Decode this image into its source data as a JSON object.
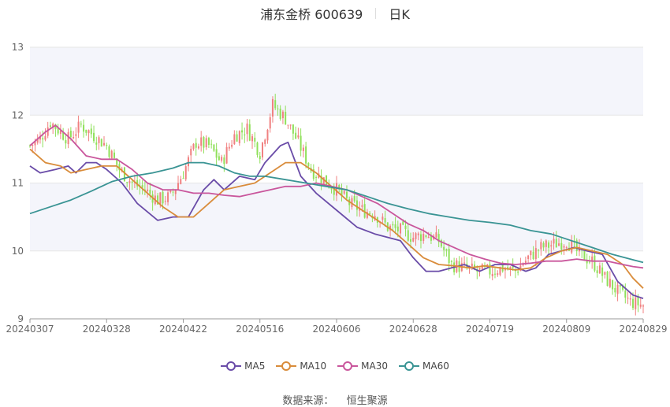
{
  "header": {
    "title": "浦东金桥 600639",
    "period": "日K"
  },
  "source": {
    "label": "数据来源：",
    "value": "恒生聚源"
  },
  "legend": [
    {
      "name": "MA5",
      "color": "#6a4ca8"
    },
    {
      "name": "MA10",
      "color": "#d98c3b"
    },
    {
      "name": "MA30",
      "color": "#c9569c"
    },
    {
      "name": "MA60",
      "color": "#3a9494"
    }
  ],
  "colors": {
    "up": "#f08080",
    "down": "#8fe05a",
    "grid": "#e6e6e6",
    "band": "#f4f5fb"
  },
  "chart_data": {
    "type": "candlestick",
    "title": "浦东金桥 600639",
    "ylim": [
      9,
      13
    ],
    "yticks": [
      "13",
      "12",
      "11",
      "10",
      "9"
    ],
    "xticks": [
      "20240307",
      "20240328",
      "20240422",
      "20240516",
      "20240606",
      "20240628",
      "20240719",
      "20240809",
      "20240829"
    ],
    "close_path": [
      [
        0,
        11.55
      ],
      [
        4,
        11.65
      ],
      [
        8,
        11.9
      ],
      [
        12,
        11.75
      ],
      [
        15,
        11.65
      ],
      [
        20,
        11.85
      ],
      [
        25,
        11.7
      ],
      [
        30,
        11.55
      ],
      [
        35,
        11.2
      ],
      [
        40,
        11.0
      ],
      [
        45,
        10.9
      ],
      [
        50,
        10.75
      ],
      [
        55,
        10.8
      ],
      [
        60,
        11.15
      ],
      [
        65,
        11.6
      ],
      [
        70,
        11.55
      ],
      [
        75,
        11.3
      ],
      [
        80,
        11.7
      ],
      [
        85,
        11.8
      ],
      [
        90,
        11.45
      ],
      [
        95,
        12.15
      ],
      [
        100,
        11.95
      ],
      [
        105,
        11.6
      ],
      [
        110,
        11.2
      ],
      [
        115,
        11.05
      ],
      [
        120,
        10.9
      ],
      [
        125,
        10.7
      ],
      [
        130,
        10.6
      ],
      [
        135,
        10.55
      ],
      [
        140,
        10.35
      ],
      [
        145,
        10.3
      ],
      [
        150,
        10.2
      ],
      [
        155,
        10.25
      ],
      [
        160,
        10.15
      ],
      [
        165,
        9.8
      ],
      [
        170,
        9.75
      ],
      [
        175,
        9.7
      ],
      [
        180,
        9.7
      ],
      [
        185,
        9.75
      ],
      [
        190,
        9.7
      ],
      [
        195,
        9.9
      ],
      [
        200,
        10.05
      ],
      [
        205,
        10.1
      ],
      [
        210,
        10.15
      ],
      [
        215,
        9.95
      ],
      [
        220,
        9.85
      ],
      [
        225,
        9.6
      ],
      [
        230,
        9.4
      ],
      [
        235,
        9.25
      ],
      [
        240,
        9.2
      ]
    ],
    "series": [
      {
        "name": "MA5",
        "values": [
          [
            0,
            11.25
          ],
          [
            4,
            11.15
          ],
          [
            10,
            11.2
          ],
          [
            15,
            11.25
          ],
          [
            18,
            11.15
          ],
          [
            22,
            11.3
          ],
          [
            26,
            11.3
          ],
          [
            30,
            11.2
          ],
          [
            36,
            11.0
          ],
          [
            42,
            10.7
          ],
          [
            50,
            10.45
          ],
          [
            56,
            10.5
          ],
          [
            62,
            10.5
          ],
          [
            68,
            10.9
          ],
          [
            72,
            11.05
          ],
          [
            76,
            10.9
          ],
          [
            82,
            11.1
          ],
          [
            88,
            11.05
          ],
          [
            92,
            11.3
          ],
          [
            98,
            11.55
          ],
          [
            101,
            11.6
          ],
          [
            106,
            11.1
          ],
          [
            112,
            10.85
          ],
          [
            120,
            10.6
          ],
          [
            128,
            10.35
          ],
          [
            135,
            10.25
          ],
          [
            140,
            10.2
          ],
          [
            145,
            10.15
          ],
          [
            150,
            9.9
          ],
          [
            155,
            9.7
          ],
          [
            160,
            9.7
          ],
          [
            165,
            9.75
          ],
          [
            170,
            9.8
          ],
          [
            176,
            9.7
          ],
          [
            182,
            9.8
          ],
          [
            188,
            9.8
          ],
          [
            194,
            9.7
          ],
          [
            198,
            9.75
          ],
          [
            203,
            9.95
          ],
          [
            208,
            10.0
          ],
          [
            213,
            10.05
          ],
          [
            218,
            10.0
          ],
          [
            224,
            9.95
          ],
          [
            230,
            9.55
          ],
          [
            236,
            9.35
          ],
          [
            240,
            9.3
          ]
        ]
      },
      {
        "name": "MA10",
        "values": [
          [
            0,
            11.5
          ],
          [
            6,
            11.3
          ],
          [
            12,
            11.25
          ],
          [
            16,
            11.15
          ],
          [
            22,
            11.2
          ],
          [
            28,
            11.25
          ],
          [
            34,
            11.25
          ],
          [
            40,
            11.05
          ],
          [
            46,
            10.85
          ],
          [
            52,
            10.65
          ],
          [
            58,
            10.5
          ],
          [
            64,
            10.5
          ],
          [
            70,
            10.7
          ],
          [
            76,
            10.9
          ],
          [
            82,
            10.95
          ],
          [
            88,
            11.0
          ],
          [
            94,
            11.15
          ],
          [
            100,
            11.3
          ],
          [
            106,
            11.3
          ],
          [
            112,
            11.15
          ],
          [
            118,
            10.95
          ],
          [
            124,
            10.75
          ],
          [
            130,
            10.6
          ],
          [
            136,
            10.45
          ],
          [
            142,
            10.3
          ],
          [
            148,
            10.1
          ],
          [
            154,
            9.9
          ],
          [
            160,
            9.8
          ],
          [
            166,
            9.78
          ],
          [
            172,
            9.75
          ],
          [
            178,
            9.78
          ],
          [
            184,
            9.75
          ],
          [
            190,
            9.72
          ],
          [
            196,
            9.75
          ],
          [
            202,
            9.9
          ],
          [
            208,
            10.0
          ],
          [
            214,
            10.05
          ],
          [
            220,
            10.0
          ],
          [
            226,
            9.95
          ],
          [
            232,
            9.8
          ],
          [
            236,
            9.6
          ],
          [
            240,
            9.45
          ]
        ]
      },
      {
        "name": "MA30",
        "values": [
          [
            0,
            11.55
          ],
          [
            6,
            11.75
          ],
          [
            10,
            11.85
          ],
          [
            16,
            11.65
          ],
          [
            22,
            11.4
          ],
          [
            28,
            11.35
          ],
          [
            34,
            11.35
          ],
          [
            40,
            11.2
          ],
          [
            46,
            11.0
          ],
          [
            52,
            10.9
          ],
          [
            58,
            10.9
          ],
          [
            64,
            10.85
          ],
          [
            70,
            10.85
          ],
          [
            76,
            10.82
          ],
          [
            82,
            10.8
          ],
          [
            88,
            10.85
          ],
          [
            94,
            10.9
          ],
          [
            100,
            10.95
          ],
          [
            106,
            10.95
          ],
          [
            112,
            11.0
          ],
          [
            118,
            10.95
          ],
          [
            124,
            10.9
          ],
          [
            130,
            10.8
          ],
          [
            136,
            10.7
          ],
          [
            142,
            10.55
          ],
          [
            148,
            10.4
          ],
          [
            154,
            10.3
          ],
          [
            160,
            10.15
          ],
          [
            166,
            10.05
          ],
          [
            172,
            9.95
          ],
          [
            178,
            9.88
          ],
          [
            184,
            9.82
          ],
          [
            190,
            9.8
          ],
          [
            196,
            9.82
          ],
          [
            202,
            9.85
          ],
          [
            208,
            9.85
          ],
          [
            214,
            9.88
          ],
          [
            220,
            9.85
          ],
          [
            226,
            9.85
          ],
          [
            232,
            9.8
          ],
          [
            236,
            9.77
          ],
          [
            240,
            9.75
          ]
        ]
      },
      {
        "name": "MA60",
        "values": [
          [
            0,
            10.55
          ],
          [
            8,
            10.65
          ],
          [
            16,
            10.75
          ],
          [
            24,
            10.88
          ],
          [
            32,
            11.02
          ],
          [
            40,
            11.1
          ],
          [
            48,
            11.15
          ],
          [
            56,
            11.22
          ],
          [
            62,
            11.3
          ],
          [
            68,
            11.3
          ],
          [
            74,
            11.25
          ],
          [
            80,
            11.15
          ],
          [
            86,
            11.1
          ],
          [
            92,
            11.1
          ],
          [
            100,
            11.05
          ],
          [
            108,
            11.0
          ],
          [
            116,
            10.95
          ],
          [
            124,
            10.9
          ],
          [
            132,
            10.8
          ],
          [
            140,
            10.7
          ],
          [
            148,
            10.62
          ],
          [
            156,
            10.55
          ],
          [
            164,
            10.5
          ],
          [
            172,
            10.45
          ],
          [
            180,
            10.42
          ],
          [
            188,
            10.38
          ],
          [
            196,
            10.3
          ],
          [
            204,
            10.25
          ],
          [
            212,
            10.15
          ],
          [
            220,
            10.05
          ],
          [
            228,
            9.95
          ],
          [
            236,
            9.87
          ],
          [
            240,
            9.83
          ]
        ]
      }
    ]
  }
}
